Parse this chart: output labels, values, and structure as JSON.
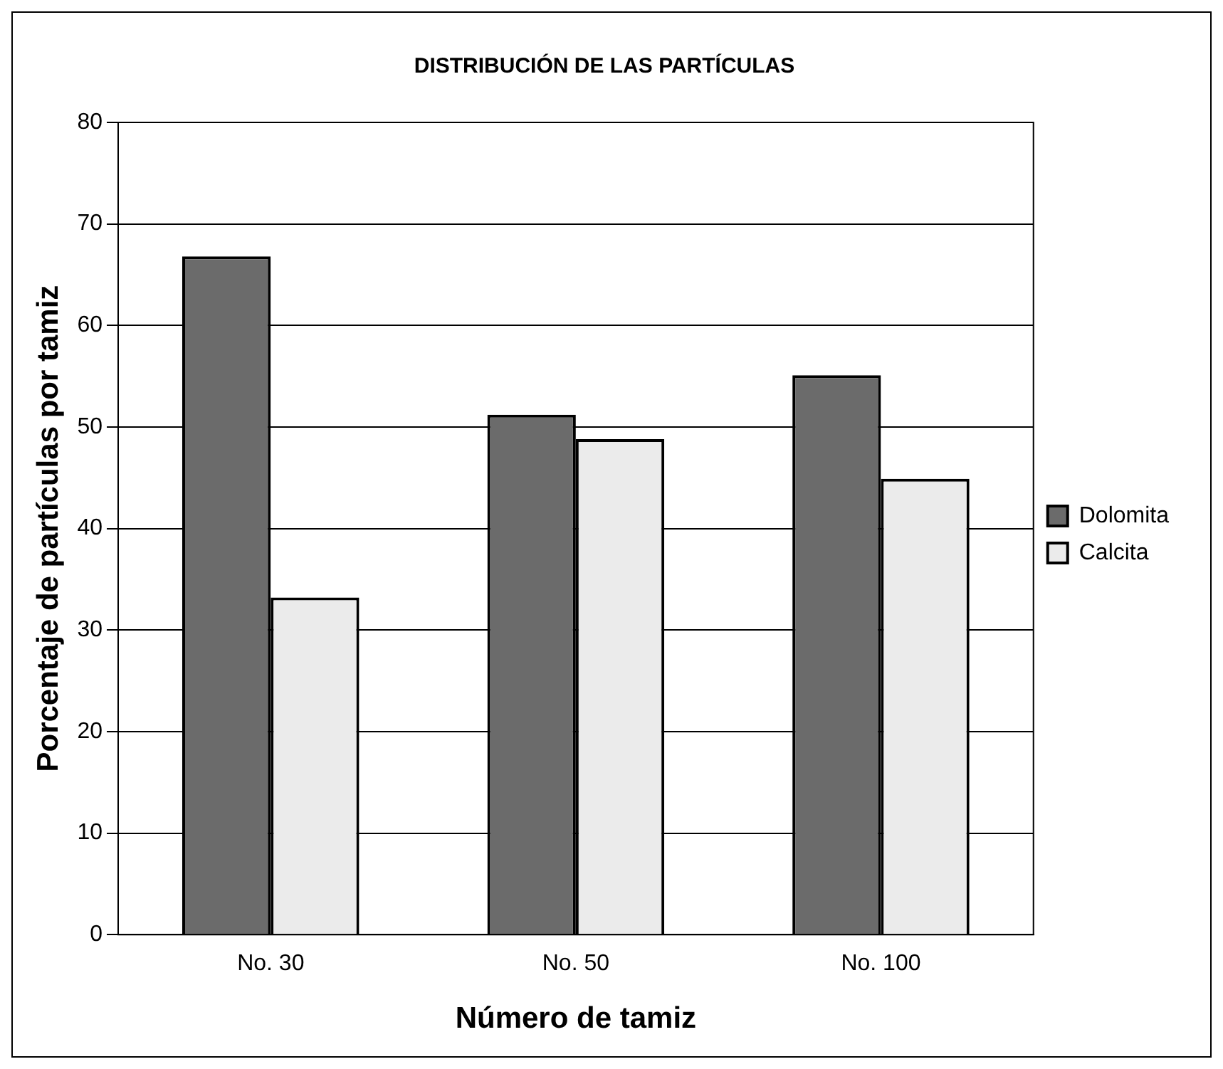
{
  "chart_data": {
    "type": "bar",
    "title": "DISTRIBUCIÓN DE LAS PARTÍCULAS",
    "xlabel": "Número de tamiz",
    "ylabel": "Porcentaje de partículas por tamiz",
    "categories": [
      "No. 30",
      "No. 50",
      "No. 100"
    ],
    "series": [
      {
        "name": "Dolomita",
        "color": "#6b6b6b",
        "values": [
          66.8,
          51.2,
          55.1
        ]
      },
      {
        "name": "Calcita",
        "color": "#ebebeb",
        "values": [
          33.2,
          48.8,
          44.9
        ]
      }
    ],
    "ylim": [
      0,
      80
    ],
    "yticks": [
      0,
      10,
      20,
      30,
      40,
      50,
      60,
      70,
      80
    ],
    "grid": "y",
    "legend": "right"
  }
}
